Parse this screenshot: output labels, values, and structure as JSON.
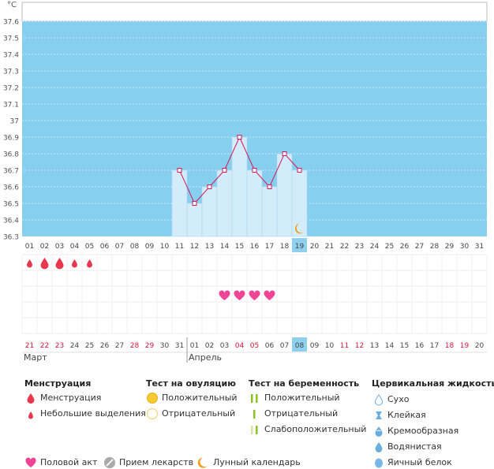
{
  "chart_data": {
    "type": "line",
    "unit": "°C",
    "y_ticks": [
      "37.6",
      "37.5",
      "37.4",
      "37.3",
      "37.2",
      "37.1",
      "37",
      "36.9",
      "36.8",
      "36.7",
      "36.6",
      "36.5",
      "36.4",
      "36.3"
    ],
    "ylim": [
      36.3,
      37.6
    ],
    "cycle_days": [
      "01",
      "02",
      "03",
      "04",
      "05",
      "06",
      "07",
      "08",
      "09",
      "10",
      "11",
      "12",
      "13",
      "14",
      "15",
      "16",
      "17",
      "18",
      "19",
      "20",
      "21",
      "22",
      "23",
      "24",
      "25",
      "26",
      "27",
      "28",
      "29",
      "30",
      "31"
    ],
    "calendar_days": [
      "21",
      "22",
      "23",
      "24",
      "25",
      "26",
      "27",
      "28",
      "29",
      "30",
      "31",
      "01",
      "02",
      "03",
      "04",
      "05",
      "06",
      "07",
      "08",
      "09",
      "10",
      "11",
      "12",
      "13",
      "14",
      "15",
      "16",
      "17",
      "18",
      "19",
      "20"
    ],
    "calendar_red": [
      true,
      true,
      true,
      false,
      false,
      false,
      false,
      true,
      true,
      false,
      false,
      false,
      false,
      false,
      true,
      true,
      false,
      false,
      false,
      false,
      false,
      true,
      true,
      false,
      false,
      false,
      false,
      false,
      true,
      true,
      false
    ],
    "current_index": 18,
    "months": [
      {
        "label": "Март",
        "start_index": 0
      },
      {
        "label": "Апрель",
        "start_index": 11
      }
    ],
    "series": [
      {
        "days": [
          11,
          12,
          13,
          14,
          15,
          16,
          17,
          18,
          19
        ],
        "values": [
          36.7,
          36.5,
          36.6,
          36.7,
          36.9,
          36.7,
          36.6,
          36.8,
          36.7
        ]
      }
    ],
    "menstruation": [
      {
        "day": 1,
        "type": "light"
      },
      {
        "day": 2,
        "type": "heavy"
      },
      {
        "day": 3,
        "type": "heavy"
      },
      {
        "day": 4,
        "type": "light"
      },
      {
        "day": 5,
        "type": "light"
      }
    ],
    "intercourse_days": [
      14,
      15,
      16,
      17
    ],
    "moon_day": 19,
    "colors": {
      "plot_bg": "#87cfee",
      "bar": "#d3ecfa",
      "line": "#d3185a",
      "current": "#8fd0ef",
      "drop": "#e8384f",
      "heart": "#f04497",
      "moon": "#f29a1b"
    }
  },
  "legend": {
    "menstruation": {
      "title": "Менструация",
      "items": [
        "Менструация",
        "Небольшие выделения"
      ]
    },
    "ovulation": {
      "title": "Тест на овуляцию",
      "items": [
        "Положительный",
        "Отрицательный"
      ]
    },
    "pregnancy": {
      "title": "Тест на беременность",
      "items": [
        "Положительный",
        "Отрицательный",
        "Слабоположительный"
      ]
    },
    "cervical": {
      "title": "Цервикальная жидкость",
      "items": [
        "Сухо",
        "Клейкая",
        "Кремообразная",
        "Водянистая",
        "Яичный белок"
      ]
    },
    "bottom": [
      "Половой акт",
      "Прием лекарств",
      "Лунный календарь"
    ]
  }
}
